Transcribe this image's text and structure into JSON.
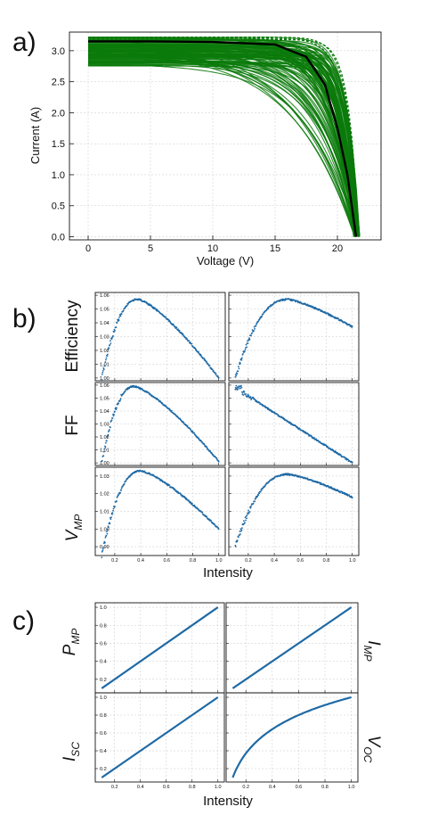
{
  "panel_labels": {
    "a": "a)",
    "b": "b)",
    "c": "c)"
  },
  "panel_a": {
    "xlabel": "Voltage (V)",
    "ylabel": "Current (A)",
    "x_ticks": [
      "0",
      "5",
      "10",
      "15",
      "20"
    ],
    "y_ticks": [
      "0.0",
      "0.5",
      "1.0",
      "1.5",
      "2.0",
      "2.5",
      "3.0"
    ]
  },
  "panel_b": {
    "xlabel": "Intensity",
    "row_labels": [
      {
        "main": "Efficiency",
        "sub": ""
      },
      {
        "main": "FF",
        "sub": ""
      },
      {
        "main": "V",
        "sub": "MP"
      }
    ],
    "x_ticks": [
      "0.2",
      "0.4",
      "0.6",
      "0.8",
      "1.0"
    ],
    "y_ticks": [
      [
        "1.00",
        "1.01",
        "1.02",
        "1.03",
        "1.04",
        "1.05",
        "1.06"
      ],
      [
        "1.00",
        "1.01",
        "1.02",
        "1.03",
        "1.04",
        "1.05",
        "1.06"
      ],
      [
        "0.99",
        "1.00",
        "1.01",
        "1.02",
        "1.03"
      ]
    ]
  },
  "panel_c": {
    "xlabel": "Intensity",
    "row_labels": [
      {
        "main": "P",
        "sub": "MP",
        "side": "left"
      },
      {
        "main": "I",
        "sub": "MP",
        "side": "right"
      },
      {
        "main": "I",
        "sub": "SC",
        "side": "left"
      },
      {
        "main": "V",
        "sub": "OC",
        "side": "right"
      }
    ],
    "x_ticks": [
      "0.2",
      "0.4",
      "0.6",
      "0.8",
      "1.0"
    ],
    "y_ticks": [
      "0.2",
      "0.4",
      "0.6",
      "0.8",
      "1.0"
    ]
  },
  "colors": {
    "green_curves": "#0a7a0a",
    "reference_curve": "#000000",
    "scatter_blue": "#1f6aa5",
    "line_blue": "#1f6aa5"
  },
  "chart_data": [
    {
      "type": "line",
      "panel": "a",
      "xlabel": "Voltage (V)",
      "ylabel": "Current (A)",
      "xlim": [
        -1.5,
        23.5
      ],
      "ylim": [
        -0.05,
        3.3
      ],
      "grid": true,
      "series": [
        {
          "style": "green-family",
          "count": 110,
          "isc_range": [
            2.75,
            3.22
          ],
          "voc": 21.6
        },
        {
          "style": "black-reference",
          "isc": 3.15,
          "voc": 21.5,
          "points": [
            [
              0,
              3.15
            ],
            [
              5,
              3.15
            ],
            [
              10,
              3.14
            ],
            [
              15,
              3.1
            ],
            [
              17.5,
              2.9
            ],
            [
              19,
              2.45
            ],
            [
              20,
              1.75
            ],
            [
              20.8,
              1.0
            ],
            [
              21.5,
              0.0
            ]
          ]
        }
      ]
    },
    {
      "type": "scatter",
      "panel": "b",
      "xlabel": "Intensity",
      "xlim": [
        0.05,
        1.05
      ],
      "subplots": [
        {
          "row": "Efficiency",
          "col": 0,
          "ylim": [
            0.998,
            1.062
          ],
          "peak_x": 0.38,
          "peak_y": 1.057,
          "start_y": 1.0,
          "end_y": 1.0
        },
        {
          "row": "Efficiency",
          "col": 1,
          "ylim": [
            0.998,
            1.062
          ],
          "peak_x": 0.5,
          "peak_y": 1.057,
          "start_y": 1.0,
          "end_y": 1.037
        },
        {
          "row": "FF",
          "col": 0,
          "ylim": [
            0.998,
            1.062
          ],
          "peak_x": 0.35,
          "peak_y": 1.059,
          "start_y": 1.0,
          "end_y": 1.001
        },
        {
          "row": "FF",
          "col": 1,
          "ylim": [
            0.998,
            1.062
          ],
          "peak_x": 0.15,
          "peak_y": 1.06,
          "start_y": 1.058,
          "end_y": 1.0
        },
        {
          "row": "V_MP",
          "col": 0,
          "ylim": [
            0.985,
            1.035
          ],
          "peak_x": 0.4,
          "peak_y": 1.033,
          "start_y": 0.985,
          "end_y": 1.0
        },
        {
          "row": "V_MP",
          "col": 1,
          "ylim": [
            0.985,
            1.035
          ],
          "peak_x": 0.5,
          "peak_y": 1.031,
          "start_y": 0.99,
          "end_y": 1.018
        }
      ]
    },
    {
      "type": "line",
      "panel": "c",
      "xlabel": "Intensity",
      "xlim": [
        0.05,
        1.05
      ],
      "ylim": [
        0.05,
        1.05
      ],
      "subplots": [
        {
          "row": "P_MP",
          "x": [
            0.1,
            1.0
          ],
          "y": [
            0.1,
            1.0
          ]
        },
        {
          "row": "I_MP",
          "x": [
            0.1,
            1.0
          ],
          "y": [
            0.1,
            1.0
          ]
        },
        {
          "row": "I_SC",
          "x": [
            0.1,
            1.0
          ],
          "y": [
            0.1,
            1.0
          ]
        },
        {
          "row": "V_OC",
          "x": [
            0.1,
            0.2,
            0.3,
            0.4,
            0.5,
            0.6,
            0.7,
            0.8,
            0.9,
            1.0
          ],
          "y": [
            0.1,
            0.37,
            0.53,
            0.64,
            0.73,
            0.8,
            0.86,
            0.91,
            0.96,
            1.0
          ]
        }
      ]
    }
  ]
}
